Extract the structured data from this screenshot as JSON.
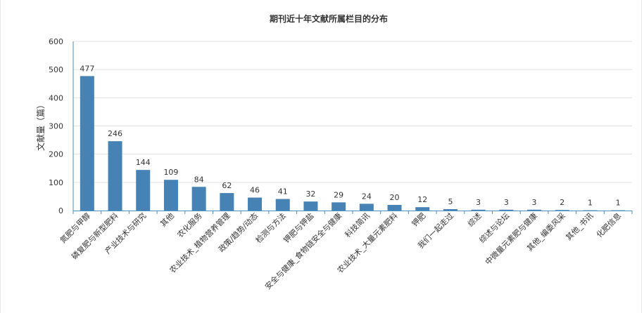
{
  "chart_data": {
    "type": "bar",
    "title": "期刊近十年文献所属栏目的分布",
    "ylabel": "文献量（篇）",
    "xlabel": "",
    "ylim": [
      0,
      600
    ],
    "yticks": [
      "0",
      "100",
      "200",
      "300",
      "400",
      "500",
      "600"
    ],
    "grid": true,
    "bar_color": "#4682b4",
    "categories": [
      "氮肥与甲醇",
      "磷复肥与新型肥料",
      "产业技术与研究",
      "其他",
      "农化服务",
      "农业技术_植物营养管理",
      "政策/趋势/动态",
      "检测与方法",
      "钾肥与钾盐",
      "安全与健康_食物链安全与健康",
      "科技简讯",
      "农业技术_大量元素肥料",
      "钾肥",
      "我们一起走过",
      "综述",
      "综述与论坛",
      "中微量元素肥与健康",
      "其他_编委风采",
      "其他_书讯",
      "化肥信息"
    ],
    "values": [
      477,
      246,
      144,
      109,
      84,
      62,
      46,
      41,
      32,
      29,
      24,
      20,
      12,
      5,
      3,
      3,
      3,
      2,
      1,
      1
    ],
    "value_labels": [
      "477",
      "246",
      "144",
      "109",
      "84",
      "62",
      "46",
      "41",
      "32",
      "29",
      "24",
      "20",
      "12",
      "5",
      "3",
      "3",
      "3",
      "2",
      "1",
      "1"
    ]
  }
}
